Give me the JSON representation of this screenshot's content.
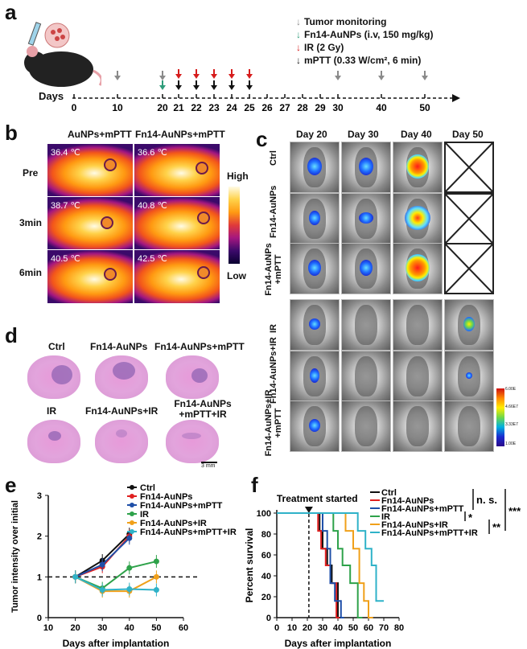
{
  "panels": {
    "a": "a",
    "b": "b",
    "c": "c",
    "d": "d",
    "e": "e",
    "f": "f"
  },
  "timeline": {
    "days_label": "Days",
    "ticks": [
      "0",
      "10",
      "20",
      "21",
      "22",
      "23",
      "24",
      "25",
      "26",
      "27",
      "28",
      "29",
      "30",
      "40",
      "50"
    ],
    "legend": [
      {
        "text": "Tumor monitoring",
        "color": "#8a8a8a"
      },
      {
        "text": "Fn14-AuNPs (i.v, 150 mg/kg)",
        "color": "#2e9c7a"
      },
      {
        "text": "IR (2 Gy)",
        "color": "#d61c1c"
      },
      {
        "text": "mPTT (0.33 W/cm², 6 min)",
        "color": "#111111"
      }
    ]
  },
  "thermal": {
    "col_headers": [
      "AuNPs+mPTT",
      "Fn14-AuNPs+mPTT"
    ],
    "row_labels": [
      "Pre",
      "3min",
      "6min"
    ],
    "temps": [
      [
        "36.4 ℃",
        "36.6 ℃"
      ],
      [
        "38.7 ℃",
        "40.8 ℃"
      ],
      [
        "40.5 ℃",
        "42.5 ℃"
      ]
    ],
    "scale_high": "High",
    "scale_low": "Low"
  },
  "biolum": {
    "col_headers": [
      "Day 20",
      "Day 30",
      "Day 40",
      "Day 50"
    ],
    "row_labels": [
      "Ctrl",
      "Fn14-AuNPs",
      "Fn14-AuNPs +mPTT",
      "IR",
      "Fn14-AuNPs+IR",
      "Fn14-AuNPs+IR +mPTT"
    ],
    "scale_ticks": [
      "6.00E",
      "4.66E7",
      "3.33E7",
      "1.00E"
    ]
  },
  "histology": {
    "labels_top": [
      "Ctrl",
      "Fn14-AuNPs",
      "Fn14-AuNPs+mPTT"
    ],
    "labels_bottom": [
      "IR",
      "Fn14-AuNPs+IR",
      "Fn14-AuNPs +mPTT+IR"
    ],
    "scalebar": "3 mm"
  },
  "chart_data": [
    {
      "type": "line",
      "panel": "e",
      "xlabel": "Days after implantation",
      "ylabel": "Tumor intensity over initial",
      "xlim": [
        10,
        60
      ],
      "ylim": [
        0,
        3
      ],
      "xticks": [
        "10",
        "20",
        "30",
        "40",
        "50",
        "60"
      ],
      "yticks": [
        "0",
        "1",
        "2",
        "3"
      ],
      "series": [
        {
          "name": "Ctrl",
          "color": "#111111",
          "x": [
            20,
            30,
            40
          ],
          "y": [
            1.0,
            1.4,
            2.05
          ]
        },
        {
          "name": "Fn14-AuNPs",
          "color": "#e02020",
          "x": [
            20,
            30,
            40
          ],
          "y": [
            1.0,
            1.25,
            2.0
          ]
        },
        {
          "name": "Fn14-AuNPs+mPTT",
          "color": "#1f4fa8",
          "x": [
            20,
            30,
            40
          ],
          "y": [
            1.0,
            1.3,
            1.95
          ]
        },
        {
          "name": "IR",
          "color": "#2ea24a",
          "x": [
            20,
            30,
            40,
            50
          ],
          "y": [
            1.0,
            0.72,
            1.22,
            1.38
          ]
        },
        {
          "name": "Fn14-AuNPs+IR",
          "color": "#f0a01a",
          "x": [
            20,
            30,
            40,
            50
          ],
          "y": [
            1.0,
            0.65,
            0.65,
            1.0
          ]
        },
        {
          "name": "Fn14-AuNPs+mPTT+IR",
          "color": "#2fb2c8",
          "x": [
            20,
            30,
            40,
            50
          ],
          "y": [
            1.0,
            0.68,
            0.7,
            0.68
          ]
        }
      ]
    },
    {
      "type": "line",
      "panel": "f",
      "xlabel": "Days after implantation",
      "ylabel": "Percent survival",
      "annotation": "Treatment started",
      "xlim": [
        0,
        80
      ],
      "ylim": [
        0,
        100
      ],
      "xticks": [
        "0",
        "10",
        "20",
        "30",
        "40",
        "50",
        "60",
        "70",
        "80"
      ],
      "yticks": [
        "0",
        "20",
        "40",
        "60",
        "80",
        "100"
      ],
      "series": [
        {
          "name": "Ctrl",
          "color": "#111111",
          "x": [
            0,
            28,
            28,
            30,
            30,
            33,
            33,
            36,
            36,
            40,
            40,
            43
          ],
          "y": [
            100,
            100,
            83,
            83,
            66,
            66,
            50,
            50,
            33,
            33,
            0,
            0
          ]
        },
        {
          "name": "Fn14-AuNPs",
          "color": "#e02020",
          "x": [
            0,
            27,
            27,
            29,
            29,
            32,
            32,
            35,
            35,
            39,
            39,
            41
          ],
          "y": [
            100,
            100,
            83,
            83,
            66,
            66,
            50,
            50,
            33,
            33,
            0,
            0
          ]
        },
        {
          "name": "Fn14-AuNPs+mPTT",
          "color": "#1f4fa8",
          "x": [
            0,
            30,
            30,
            33,
            33,
            35,
            35,
            38,
            38,
            42,
            42,
            44
          ],
          "y": [
            100,
            100,
            83,
            83,
            66,
            66,
            33,
            33,
            16,
            16,
            0,
            0
          ]
        },
        {
          "name": "IR",
          "color": "#2ea24a",
          "x": [
            0,
            37,
            37,
            40,
            40,
            43,
            43,
            48,
            48,
            53,
            53,
            56
          ],
          "y": [
            100,
            100,
            83,
            83,
            66,
            66,
            50,
            50,
            33,
            33,
            0,
            0
          ]
        },
        {
          "name": "Fn14-AuNPs+IR",
          "color": "#f0a01a",
          "x": [
            0,
            45,
            45,
            50,
            50,
            54,
            54,
            57,
            57,
            60,
            60,
            63
          ],
          "y": [
            100,
            100,
            83,
            83,
            66,
            66,
            33,
            33,
            16,
            16,
            0,
            0
          ]
        },
        {
          "name": "Fn14-AuNPs+mPTT+IR",
          "color": "#2fb2c8",
          "x": [
            0,
            53,
            53,
            58,
            58,
            62,
            62,
            65,
            65,
            70
          ],
          "y": [
            100,
            100,
            83,
            83,
            66,
            66,
            50,
            50,
            16,
            16
          ]
        }
      ],
      "significance": [
        "n. s.",
        "*",
        "**",
        "***"
      ]
    }
  ]
}
